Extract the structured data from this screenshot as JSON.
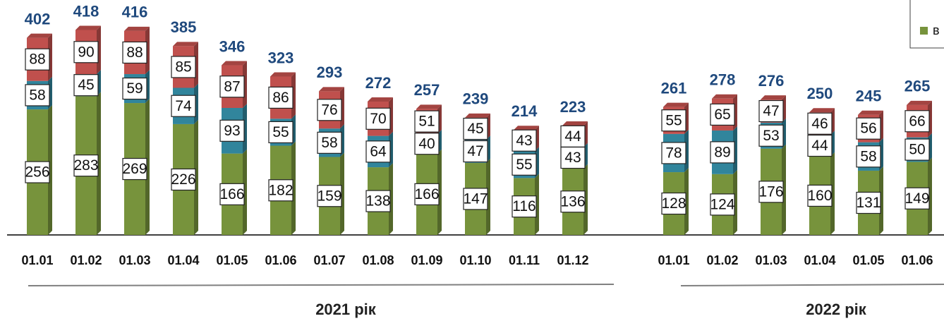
{
  "chart_data": [
    {
      "type": "stacked_bar",
      "xlabel": "2021 рік",
      "categories": [
        "01.01",
        "01.02",
        "01.03",
        "01.04",
        "01.05",
        "01.06",
        "01.07",
        "01.08",
        "01.09",
        "01.10",
        "01.11",
        "01.12"
      ],
      "series": [
        {
          "color": "#77933c",
          "values": [
            256,
            283,
            269,
            226,
            166,
            182,
            159,
            138,
            166,
            147,
            116,
            136
          ]
        },
        {
          "color": "#31859c",
          "values": [
            58,
            45,
            59,
            74,
            93,
            55,
            58,
            64,
            40,
            47,
            55,
            43
          ]
        },
        {
          "color": "#c0504d",
          "values": [
            88,
            90,
            88,
            85,
            87,
            86,
            76,
            70,
            51,
            45,
            43,
            44
          ]
        }
      ],
      "totals": [
        402,
        418,
        416,
        385,
        346,
        323,
        293,
        272,
        257,
        239,
        214,
        223
      ]
    },
    {
      "type": "stacked_bar",
      "xlabel": "2022 рік",
      "categories": [
        "01.01",
        "01.02",
        "01.03",
        "01.04",
        "01.05",
        "01.06"
      ],
      "series": [
        {
          "name": "в",
          "color": "#77933c",
          "values": [
            128,
            124,
            176,
            160,
            131,
            149
          ]
        },
        {
          "color": "#31859c",
          "values": [
            78,
            89,
            53,
            44,
            58,
            50
          ]
        },
        {
          "color": "#c0504d",
          "values": [
            55,
            65,
            47,
            46,
            56,
            66
          ]
        }
      ],
      "totals": [
        261,
        278,
        276,
        250,
        245,
        265
      ]
    }
  ]
}
